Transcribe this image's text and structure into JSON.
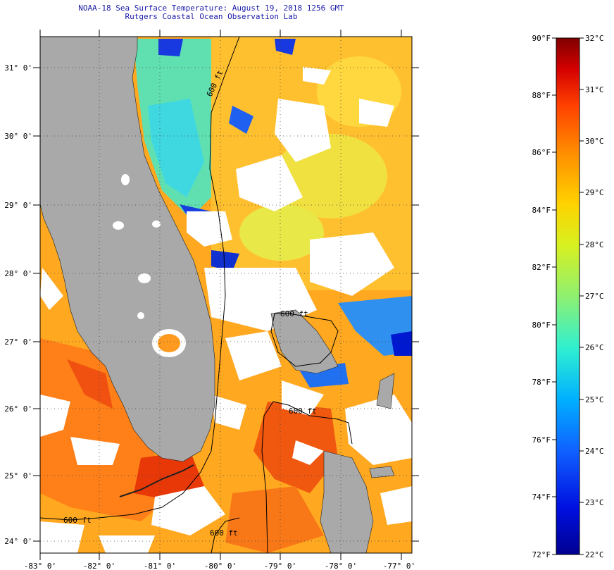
{
  "header": {
    "title": "NOAA-18 Sea Surface Temperature:  August 19, 2018 1256 GMT",
    "subtitle": "Rutgers Coastal Ocean Observation Lab"
  },
  "map": {
    "lon_ticks": [
      "-83° 0'",
      "-82° 0'",
      "-81° 0'",
      "-80° 0'",
      "-79° 0'",
      "-78° 0'",
      "-77° 0'"
    ],
    "lat_ticks": [
      "31° 0'",
      "30° 0'",
      "29° 0'",
      "28° 0'",
      "27° 0'",
      "26° 0'",
      "25° 0'",
      "24° 0'"
    ],
    "contour_labels": [
      "600 ft",
      "600 ft",
      "600 ft",
      "600 ft",
      "600 ft"
    ],
    "land_color": "#a9a9a9",
    "cloud_color": "#ffffff"
  },
  "colorbar": {
    "fahrenheit_labels": [
      "90°F",
      "88°F",
      "86°F",
      "84°F",
      "82°F",
      "80°F",
      "78°F",
      "76°F",
      "74°F",
      "72°F"
    ],
    "celsius_labels": [
      "32°C",
      "31°C",
      "30°C",
      "29°C",
      "28°C",
      "27°C",
      "26°C",
      "25°C",
      "24°C",
      "23°C",
      "22°C"
    ],
    "colors": [
      "#7f0000",
      "#d40000",
      "#ff4000",
      "#ff8c00",
      "#ffd200",
      "#d8f020",
      "#8ff070",
      "#30f0d0",
      "#00b0ff",
      "#1060ff",
      "#0010e0",
      "#00008f"
    ]
  }
}
